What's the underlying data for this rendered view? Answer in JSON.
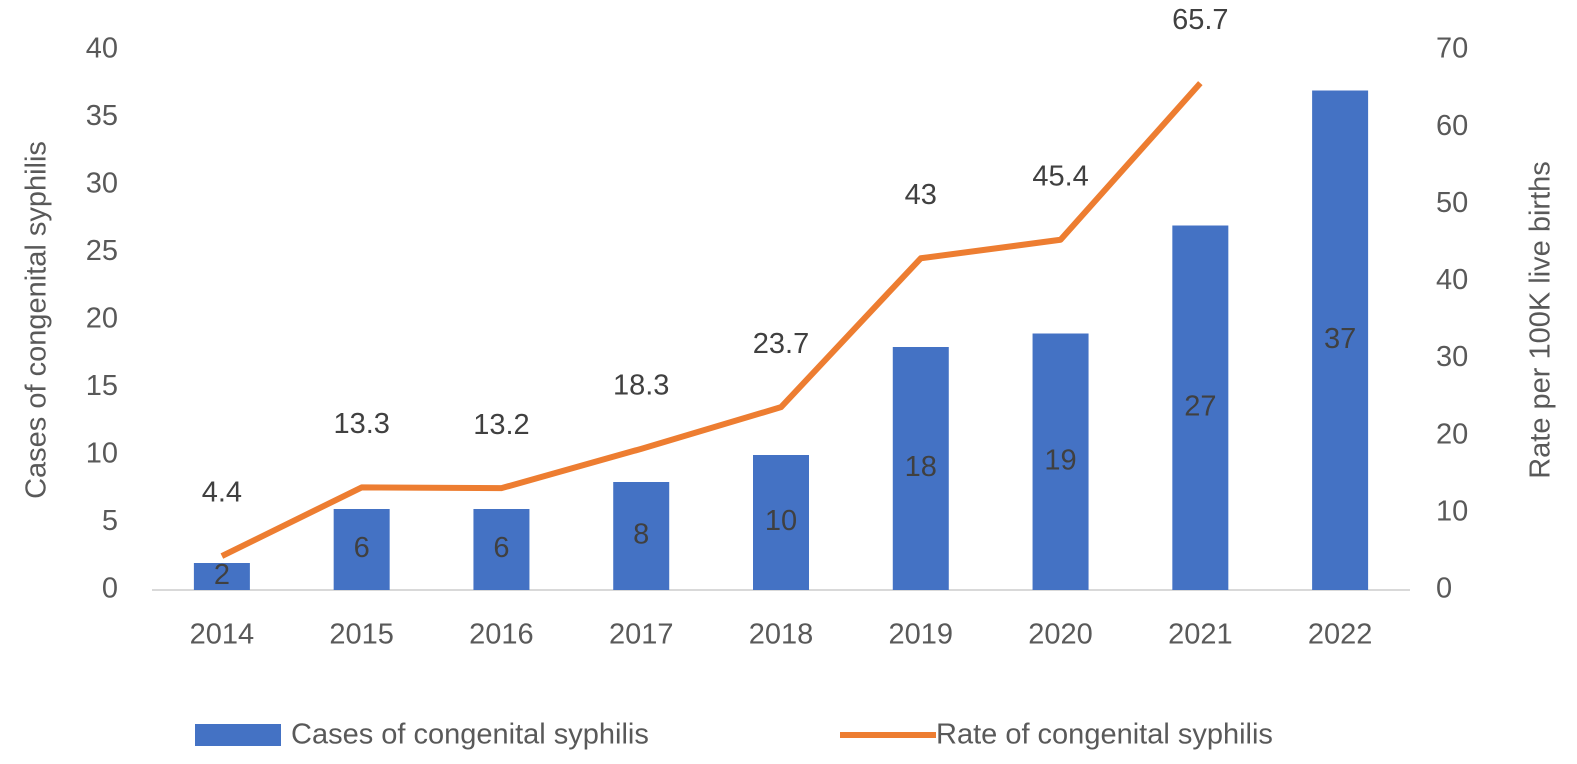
{
  "chart_data": {
    "type": "bar",
    "categories": [
      "2014",
      "2015",
      "2016",
      "2017",
      "2018",
      "2019",
      "2020",
      "2021",
      "2022"
    ],
    "y_label": "Cases of congenital syphilis",
    "y2_label": "Rate per 100K live births",
    "ylim": [
      0,
      40
    ],
    "yticks": [
      0,
      5,
      10,
      15,
      20,
      25,
      30,
      35,
      40
    ],
    "y2lim": [
      0,
      70
    ],
    "y2ticks": [
      0,
      10,
      20,
      30,
      40,
      50,
      60,
      70
    ],
    "grid": false,
    "legend": "bottom",
    "series": [
      {
        "name": "Cases of congenital syphilis",
        "type": "bar",
        "color": "#4472c4",
        "values": [
          2,
          6,
          6,
          8,
          10,
          18,
          19,
          27,
          37
        ]
      },
      {
        "name": "Rate of congenital syphilis",
        "type": "line",
        "axis": "y2",
        "color": "#ed7d31",
        "values": [
          4.4,
          13.3,
          13.2,
          18.3,
          23.7,
          43,
          45.4,
          65.7,
          null
        ]
      }
    ]
  }
}
